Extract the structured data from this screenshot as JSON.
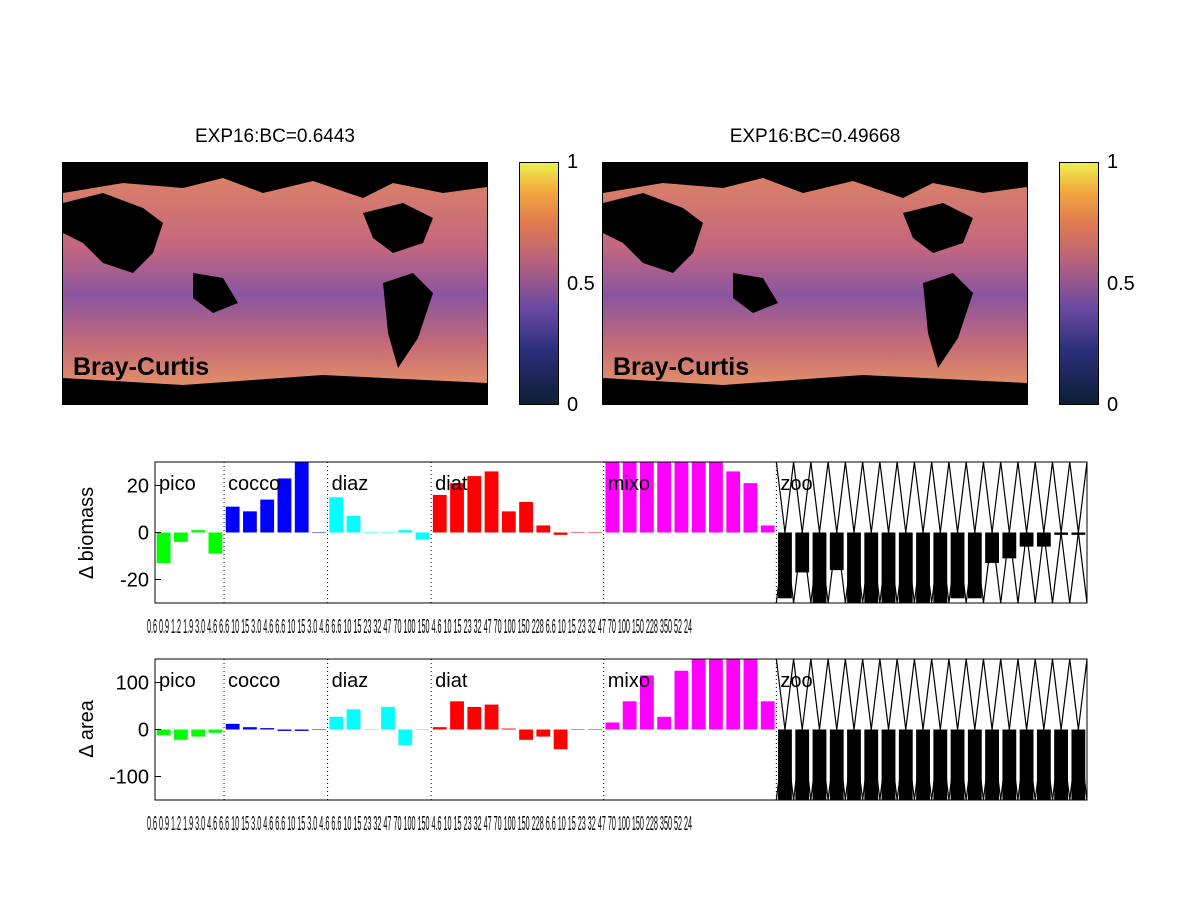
{
  "maps": [
    {
      "title": "EXP16:BC=0.6443",
      "label": "Bray-Curtis"
    },
    {
      "title": "EXP16:BC=0.49668",
      "label": "Bray-Curtis"
    }
  ],
  "colorbar": {
    "ticks": [
      "1",
      "0.5",
      "0"
    ],
    "colors": [
      "#0d1f33",
      "#2a2f7a",
      "#6b4aa2",
      "#b3607f",
      "#e07a4f",
      "#f1a83d",
      "#ecef4f"
    ]
  },
  "map_colors": {
    "ocean": "#c8627a",
    "ocean_low": "#6a4fa6",
    "ocean_high": "#f2a25a",
    "land": "#000000"
  },
  "group_labels": [
    "pico",
    "cocco",
    "diaz",
    "diat",
    "mixo",
    "zoo"
  ],
  "group_colors": [
    "#00ff00",
    "#0000ff",
    "#00ffff",
    "#ff0000",
    "#ff00ff",
    "#000000"
  ],
  "chart_data": [
    {
      "type": "bar",
      "ylabel": "Δ biomass",
      "ylim": [
        -30,
        30
      ],
      "yticks": [
        20,
        0,
        -20
      ],
      "grid": false,
      "group_sizes": [
        4,
        6,
        6,
        10,
        10,
        18
      ],
      "values": [
        -13,
        -4,
        1,
        -9,
        11,
        9,
        14,
        23,
        30,
        0,
        15,
        7,
        0,
        0,
        1,
        -3,
        16,
        21,
        24,
        26,
        9,
        13,
        3,
        -1,
        0,
        0,
        30,
        30,
        30,
        30,
        30,
        30,
        30,
        26,
        21,
        3,
        -28,
        -17,
        -30,
        -16,
        -30,
        -30,
        -30,
        -30,
        -30,
        -30,
        -28,
        -28,
        -13,
        -11,
        -6,
        -6,
        -1,
        -1
      ],
      "zoo_crossed": 14,
      "tick_labels": "0.6 0.9 1.2 1.9 3.0 4.6 6.6 10 15 3.0 4.6 6.6 10 15 3.0 4.6 6.6 10 15 23 32 47 70 100 150 4.6 10 15 23 32 47 70 100 150 228 6.6 10 15 23 32 47 70 100 150 228 350 52 24"
    },
    {
      "type": "bar",
      "ylabel": "Δ area",
      "ylim": [
        -150,
        150
      ],
      "yticks": [
        100,
        0,
        -100
      ],
      "grid": false,
      "group_sizes": [
        4,
        6,
        6,
        10,
        10,
        18
      ],
      "values": [
        -12,
        -22,
        -15,
        -7,
        12,
        5,
        3,
        -3,
        -3,
        0,
        27,
        43,
        0,
        48,
        -33,
        0,
        5,
        60,
        48,
        53,
        2,
        -22,
        -15,
        -42,
        0,
        0,
        15,
        60,
        115,
        27,
        125,
        150,
        150,
        150,
        150,
        60,
        -150,
        -150,
        -150,
        -150,
        -150,
        -150,
        -150,
        -150,
        -150,
        -150,
        -150,
        -150,
        -150,
        -150,
        -150,
        -150,
        -150,
        -150
      ],
      "zoo_crossed": 14,
      "tick_labels": "0.6 0.9 1.2 1.9 3.0 4.6 6.6 10 15 3.0 4.6 6.6 10 15 3.0 4.6 6.6 10 15 23 32 47 70 100 150 4.6 10 15 23 32 47 70 100 150 228 6.6 10 15 23 32 47 70 100 150 228 350 52 24"
    }
  ]
}
